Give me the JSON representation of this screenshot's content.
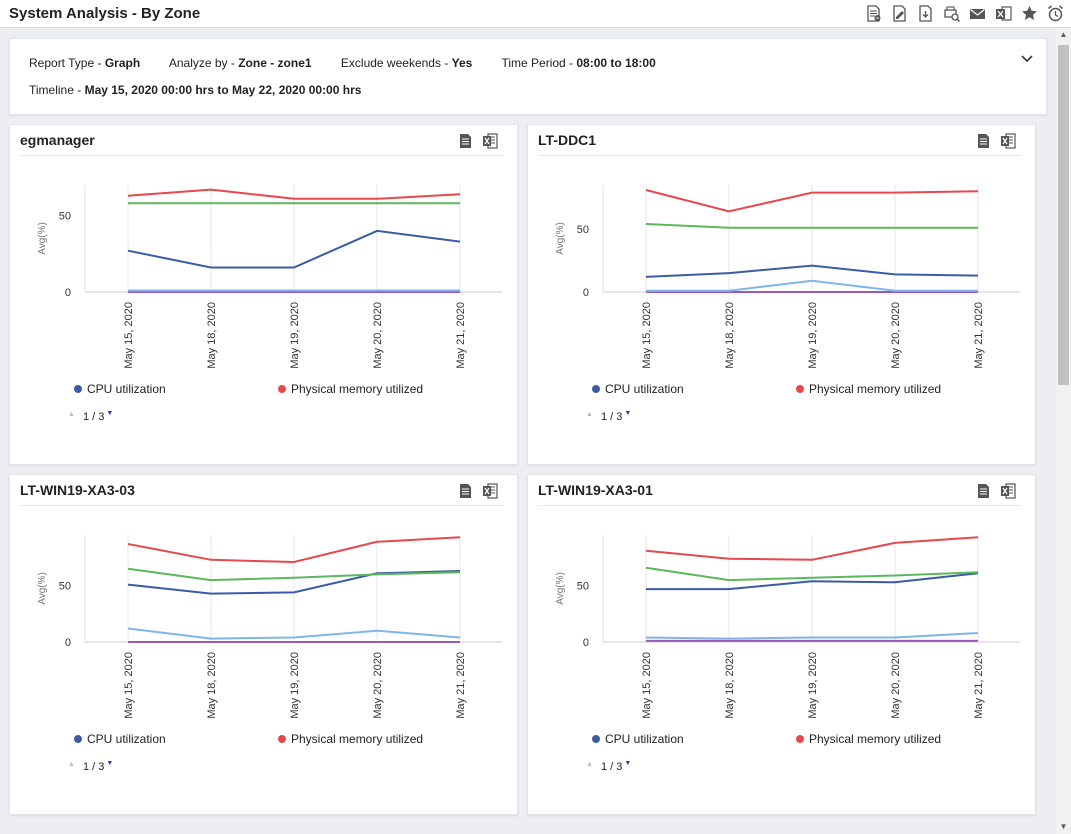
{
  "header": {
    "title": "System Analysis - By Zone",
    "toolbar": [
      {
        "name": "pdf-report-icon"
      },
      {
        "name": "edit-report-icon"
      },
      {
        "name": "export-pdf-icon"
      },
      {
        "name": "print-preview-icon"
      },
      {
        "name": "mail-icon"
      },
      {
        "name": "excel-export-icon"
      },
      {
        "name": "favorite-star-icon"
      },
      {
        "name": "schedule-alarm-icon"
      }
    ]
  },
  "filters": {
    "report_type_label": "Report Type - ",
    "report_type_value": "Graph",
    "analyze_by_label": "Analyze by - ",
    "analyze_by_value": "Zone - zone1",
    "exclude_weekends_label": "Exclude weekends - ",
    "exclude_weekends_value": "Yes",
    "time_period_label": "Time Period - ",
    "time_period_value": "08:00 to 18:00",
    "timeline_label": "Timeline - ",
    "timeline_value": "May 15, 2020 00:00 hrs to May 22, 2020 00:00 hrs"
  },
  "colors": {
    "cpu": "#3a5ca8",
    "memory": "#e5484d",
    "green": "#5cb85c",
    "lightblue": "#7eb6ea",
    "purple": "#9b59b6"
  },
  "legend": {
    "cpu": "CPU utilization",
    "memory": "Physical memory utilized"
  },
  "pager": {
    "text": "1 / 3"
  },
  "panels": [
    {
      "title": "egmanager",
      "chart_data": {
        "type": "line",
        "ylabel": "Avg(%)",
        "ylim": [
          0,
          70
        ],
        "yticks": [
          0,
          50
        ],
        "x": [
          "May 15, 2020",
          "May 18, 2020",
          "May 19, 2020",
          "May 20, 2020",
          "May 21, 2020"
        ],
        "series": [
          {
            "name": "Physical memory utilized",
            "color": "#e5484d",
            "values": [
              63,
              67,
              61,
              61,
              64
            ]
          },
          {
            "color": "#5cb85c",
            "values": [
              58,
              58,
              58,
              58,
              58
            ]
          },
          {
            "name": "CPU utilization",
            "color": "#3a5ca8",
            "values": [
              27,
              16,
              16,
              40,
              33
            ]
          },
          {
            "color": "#7eb6ea",
            "values": [
              1,
              1,
              1,
              1,
              1
            ]
          },
          {
            "color": "#9b59b6",
            "values": [
              0,
              0,
              0,
              0,
              0
            ]
          }
        ]
      }
    },
    {
      "title": "LT-DDC1",
      "chart_data": {
        "type": "line",
        "ylabel": "Avg(%)",
        "ylim": [
          0,
          85
        ],
        "yticks": [
          0,
          50
        ],
        "x": [
          "May 15, 2020",
          "May 18, 2020",
          "May 19, 2020",
          "May 20, 2020",
          "May 21, 2020"
        ],
        "series": [
          {
            "name": "Physical memory utilized",
            "color": "#e5484d",
            "values": [
              81,
              64,
              79,
              79,
              80
            ]
          },
          {
            "color": "#5cb85c",
            "values": [
              54,
              51,
              51,
              51,
              51
            ]
          },
          {
            "name": "CPU utilization",
            "color": "#3a5ca8",
            "values": [
              12,
              15,
              21,
              14,
              13
            ]
          },
          {
            "color": "#7eb6ea",
            "values": [
              1,
              1,
              9,
              1,
              1
            ]
          },
          {
            "color": "#9b59b6",
            "values": [
              0,
              0,
              0,
              0,
              0
            ]
          }
        ]
      }
    },
    {
      "title": "LT-WIN19-XA3-03",
      "chart_data": {
        "type": "line",
        "ylabel": "Avg(%)",
        "ylim": [
          0,
          95
        ],
        "yticks": [
          0,
          50
        ],
        "x": [
          "May 15, 2020",
          "May 18, 2020",
          "May 19, 2020",
          "May 20, 2020",
          "May 21, 2020"
        ],
        "series": [
          {
            "name": "Physical memory utilized",
            "color": "#e5484d",
            "values": [
              87,
              73,
              71,
              89,
              93
            ]
          },
          {
            "color": "#5cb85c",
            "values": [
              65,
              55,
              57,
              60,
              62
            ]
          },
          {
            "name": "CPU utilization",
            "color": "#3a5ca8",
            "values": [
              51,
              43,
              44,
              61,
              63
            ]
          },
          {
            "color": "#7eb6ea",
            "values": [
              12,
              3,
              4,
              10,
              4
            ]
          },
          {
            "color": "#9b59b6",
            "values": [
              0,
              0,
              0,
              0,
              0
            ]
          }
        ]
      }
    },
    {
      "title": "LT-WIN19-XA3-01",
      "chart_data": {
        "type": "line",
        "ylabel": "Avg(%)",
        "ylim": [
          0,
          95
        ],
        "yticks": [
          0,
          50
        ],
        "x": [
          "May 15, 2020",
          "May 18, 2020",
          "May 19, 2020",
          "May 20, 2020",
          "May 21, 2020"
        ],
        "series": [
          {
            "name": "Physical memory utilized",
            "color": "#e5484d",
            "values": [
              81,
              74,
              73,
              88,
              93
            ]
          },
          {
            "color": "#5cb85c",
            "values": [
              66,
              55,
              57,
              59,
              62
            ]
          },
          {
            "name": "CPU utilization",
            "color": "#3a5ca8",
            "values": [
              47,
              47,
              54,
              53,
              61
            ]
          },
          {
            "color": "#7eb6ea",
            "values": [
              4,
              3,
              4,
              4,
              8
            ]
          },
          {
            "color": "#9b59b6",
            "values": [
              1,
              1,
              1,
              1,
              1
            ]
          }
        ]
      }
    }
  ]
}
